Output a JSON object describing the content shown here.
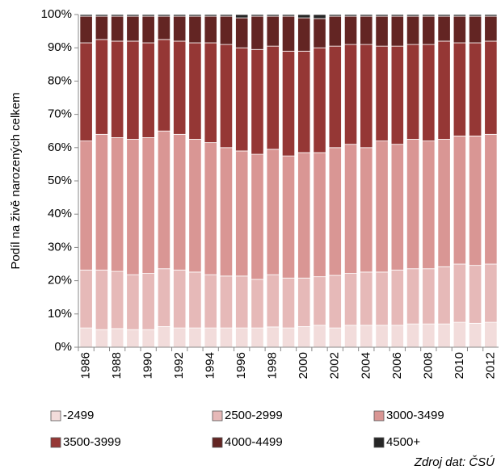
{
  "chart_data": {
    "type": "stacked_bar",
    "y_label": "Podíl na živě narozených celkem",
    "source": "Zdroj dat: ČSÚ",
    "categories": [
      "1986",
      null,
      "1988",
      null,
      "1990",
      null,
      "1992",
      null,
      "1994",
      null,
      "1996",
      null,
      "1998",
      null,
      "2000",
      null,
      "2002",
      null,
      "2004",
      null,
      "2006",
      null,
      "2008",
      null,
      "2010",
      null,
      "2012"
    ],
    "series": [
      {
        "name": "-2499",
        "color": "#f2dcdb",
        "values": [
          5.8,
          5.3,
          5.6,
          5.3,
          5.3,
          6.2,
          5.8,
          5.8,
          5.8,
          5.8,
          5.8,
          5.8,
          6.1,
          5.8,
          6.2,
          6.6,
          5.8,
          6.6,
          6.6,
          6.6,
          6.6,
          7.0,
          7.0,
          7.0,
          7.5,
          7.2,
          7.5
        ]
      },
      {
        "name": "2500-2999",
        "color": "#e6b9b8",
        "values": [
          17.4,
          17.9,
          17.2,
          16.5,
          16.9,
          17.4,
          17.4,
          16.8,
          16.0,
          15.6,
          15.6,
          14.6,
          15.7,
          15.0,
          14.6,
          14.6,
          15.8,
          15.6,
          16.0,
          16.0,
          16.6,
          16.6,
          16.6,
          17.2,
          17.5,
          17.4,
          17.5
        ]
      },
      {
        "name": "3000-3499",
        "color": "#d99694",
        "values": [
          38.8,
          40.8,
          40.2,
          40.7,
          40.8,
          41.4,
          40.8,
          39.9,
          39.7,
          38.6,
          37.6,
          37.6,
          37.7,
          36.7,
          37.7,
          37.3,
          38.4,
          38.8,
          37.4,
          39.4,
          37.8,
          38.9,
          38.4,
          38.3,
          38.5,
          38.9,
          39.0
        ]
      },
      {
        "name": "3500-3999",
        "color": "#953735",
        "values": [
          29.5,
          28.5,
          29,
          29.5,
          28.5,
          27.5,
          28,
          29,
          30,
          31,
          31,
          31.5,
          31,
          31.5,
          30.5,
          31.5,
          30.5,
          30,
          31,
          28.5,
          29.5,
          28.5,
          29,
          29.5,
          28,
          28,
          28
        ]
      },
      {
        "name": "4000-4499",
        "color": "#632523",
        "values": [
          8.0,
          7.0,
          7.5,
          7.5,
          8.0,
          7.0,
          7.5,
          8.0,
          8.0,
          8.5,
          9.0,
          10.0,
          9.0,
          10.5,
          10.0,
          8.8,
          9.0,
          8.5,
          8.5,
          9.0,
          9.0,
          8.5,
          8.5,
          7.5,
          8.0,
          8.0,
          7.5
        ]
      },
      {
        "name": "4500+",
        "color": "#262626",
        "values": [
          0.5,
          0.5,
          0.5,
          0.5,
          0.5,
          0.5,
          0.5,
          0.5,
          0.5,
          0.5,
          1.0,
          0.5,
          0.5,
          0.5,
          1.0,
          1.2,
          0.5,
          0.5,
          0.5,
          0.5,
          0.5,
          0.5,
          0.5,
          0.5,
          0.5,
          0.5,
          0.5
        ]
      }
    ],
    "ylim": [
      0,
      100
    ],
    "yticks": [
      {
        "value": 0,
        "label": "0%"
      },
      {
        "value": 10,
        "label": "10%"
      },
      {
        "value": 20,
        "label": "20%"
      },
      {
        "value": 30,
        "label": "30%"
      },
      {
        "value": 40,
        "label": "40%"
      },
      {
        "value": 50,
        "label": "50%"
      },
      {
        "value": 60,
        "label": "60%"
      },
      {
        "value": 70,
        "label": "70%"
      },
      {
        "value": 80,
        "label": "80%"
      },
      {
        "value": 90,
        "label": "90%"
      },
      {
        "value": 100,
        "label": "100%"
      }
    ],
    "legend": "bottom"
  }
}
